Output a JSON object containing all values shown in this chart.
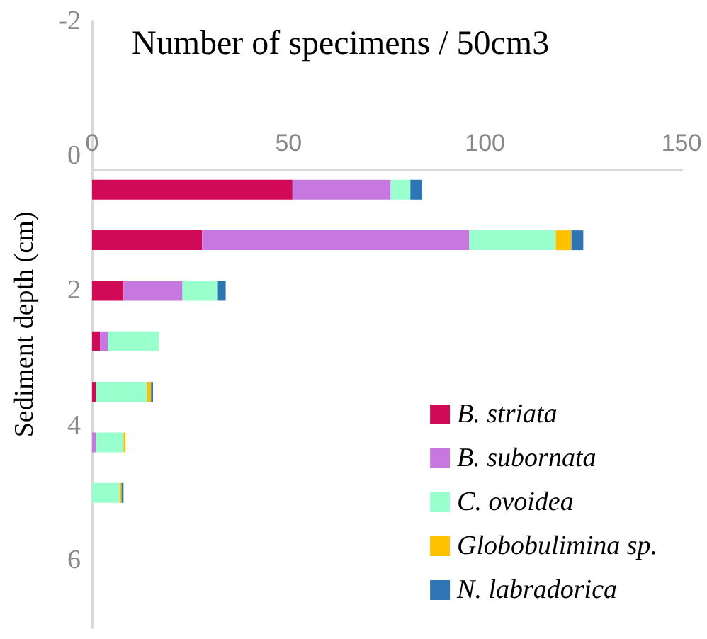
{
  "chart_data": {
    "type": "bar",
    "orientation": "horizontal",
    "stacked": true,
    "title": "Number of specimens / 50cm3",
    "ylabel": "Sediment depth (cm)",
    "x": [
      0.5,
      1.25,
      2,
      2.75,
      3.5,
      4.25,
      5
    ],
    "series": [
      {
        "name": "B. striata",
        "color": "#d00a56",
        "values": [
          51,
          28,
          8,
          2,
          1,
          0,
          0
        ]
      },
      {
        "name": "B. subornata",
        "color": "#c678e0",
        "values": [
          25,
          68,
          15,
          2,
          0,
          1,
          0
        ]
      },
      {
        "name": "C. ovoidea",
        "color": "#99ffcc",
        "values": [
          5,
          22,
          9,
          13,
          13,
          7,
          7
        ]
      },
      {
        "name": "Globobulimina sp.",
        "color": "#ffc000",
        "values": [
          0,
          4,
          0,
          0,
          1,
          0.5,
          0.5
        ]
      },
      {
        "name": "N. labradorica",
        "color": "#2e75b6",
        "values": [
          3,
          3,
          2,
          0,
          0.5,
          0,
          0.5
        ]
      }
    ],
    "xlim": [
      0,
      150
    ],
    "xticks": [
      0,
      50,
      100,
      150
    ],
    "ylim": [
      7,
      -2
    ],
    "yticks": [
      -2,
      0,
      2,
      4,
      6
    ],
    "grid": false,
    "legend": "bottom right"
  }
}
